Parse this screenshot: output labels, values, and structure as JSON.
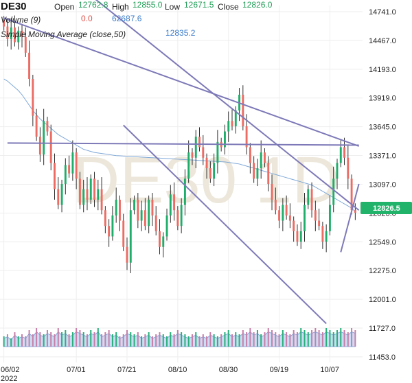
{
  "header": {
    "symbol": "DE30",
    "open_label": "Open",
    "open_value": "12762.8",
    "high_label": "High",
    "high_value": "12855.0",
    "low_label": "Low",
    "low_value": "12671.5",
    "close_label": "Close",
    "close_value": "12826.0",
    "volume_label": "Volume (9)",
    "volume_change": "0.0",
    "volume_value": "62687.6",
    "sma_label": "Simple Moving Average (close,50)",
    "sma_value": "12835.2"
  },
  "watermark": "DE30 1D",
  "last_price_tag": "12826.5",
  "colors": {
    "up": "#1fae6a",
    "down": "#ec6b63",
    "wick": "#2e2e2e",
    "sma": "#7fa8d8",
    "trendline": "#7d79b8",
    "volume_up": "#29b07a",
    "volume_down": "#c77fa8",
    "volume_area": "#a8c6ec",
    "price_tag": "#22b36b",
    "grid": "#eeeeee"
  },
  "chart_data": {
    "type": "candlestick",
    "y_ticks": [
      "14741.0",
      "14467.0",
      "14193.0",
      "13919.0",
      "13645.0",
      "13371.0",
      "13097.0",
      "12823.0",
      "12549.0",
      "12275.0",
      "12001.0",
      "11727.0",
      "11453.0"
    ],
    "ylim": [
      11400,
      14800
    ],
    "x_ticks": [
      {
        "label": "06/02",
        "bar": 0
      },
      {
        "label": "07/01",
        "bar": 20
      },
      {
        "label": "07/21",
        "bar": 34
      },
      {
        "label": "08/10",
        "bar": 48
      },
      {
        "label": "08/30",
        "bar": 62
      },
      {
        "label": "09/19",
        "bar": 76
      },
      {
        "label": "10/07",
        "bar": 90
      }
    ],
    "x_sub_label": "2022",
    "bar_count": 98,
    "closes": [
      14600,
      14480,
      14590,
      14450,
      14560,
      14500,
      14350,
      14100,
      13750,
      13550,
      13380,
      13700,
      13600,
      13300,
      13050,
      12900,
      13100,
      13280,
      13200,
      13400,
      13150,
      12900,
      13050,
      12950,
      13150,
      12950,
      13050,
      12850,
      12700,
      12600,
      12800,
      12950,
      12750,
      12500,
      12350,
      12850,
      12950,
      12750,
      12850,
      12700,
      12950,
      12800,
      12650,
      12500,
      12600,
      12800,
      13000,
      12850,
      12700,
      12900,
      13150,
      13400,
      13350,
      13550,
      13450,
      13350,
      13250,
      13150,
      13300,
      13500,
      13450,
      13600,
      13700,
      13650,
      13800,
      13950,
      13650,
      13450,
      13300,
      13150,
      13250,
      13400,
      13300,
      13100,
      12950,
      12850,
      12750,
      12900,
      12800,
      12750,
      12650,
      12550,
      12650,
      12900,
      13050,
      12850,
      12750,
      12700,
      12550,
      12650,
      12900,
      13150,
      13300,
      13450,
      13350,
      13150,
      12850,
      12826
    ],
    "sma": [
      14100,
      14080,
      14050,
      14020,
      13990,
      13950,
      13900,
      13850,
      13800,
      13760,
      13720,
      13690,
      13660,
      13630,
      13600,
      13570,
      13550,
      13530,
      13510,
      13490,
      13470,
      13450,
      13430,
      13420,
      13410,
      13400,
      13395,
      13390,
      13385,
      13380,
      13375,
      13370,
      13368,
      13366,
      13364,
      13362,
      13360,
      13358,
      13356,
      13354,
      13352,
      13350,
      13348,
      13346,
      13344,
      13342,
      13340,
      13338,
      13336,
      13334,
      13332,
      13330,
      13328,
      13326,
      13324,
      13322,
      13320,
      13318,
      13316,
      13314,
      13312,
      13310,
      13305,
      13300,
      13295,
      13290,
      13280,
      13270,
      13260,
      13250,
      13240,
      13230,
      13220,
      13210,
      13200,
      13190,
      13180,
      13170,
      13160,
      13150,
      13140,
      13130,
      13120,
      13110,
      13100,
      13090,
      13070,
      13050,
      13030,
      13010,
      12990,
      12970,
      12950,
      12930,
      12910,
      12890,
      12870,
      12835
    ],
    "volumes": [
      0.5,
      0.6,
      0.4,
      0.7,
      0.5,
      0.6,
      0.5,
      0.8,
      0.6,
      0.9,
      0.7,
      0.6,
      0.8,
      0.7,
      0.6,
      0.9,
      0.7,
      0.8,
      0.6,
      0.7,
      0.9,
      0.8,
      0.7,
      0.6,
      0.8,
      0.7,
      0.9,
      0.6,
      0.7,
      0.8,
      0.6,
      0.7,
      0.5,
      0.6,
      0.8,
      0.7,
      0.6,
      0.7,
      0.5,
      0.6,
      0.7,
      0.5,
      0.6,
      0.7,
      0.6,
      0.5,
      0.7,
      0.6,
      0.8,
      0.7,
      0.6,
      0.5,
      0.6,
      0.7,
      0.5,
      0.6,
      0.5,
      0.7,
      0.6,
      0.5,
      0.6,
      0.7,
      0.8,
      0.6,
      0.7,
      0.6,
      0.8,
      0.7,
      0.9,
      0.7,
      0.8,
      0.6,
      0.7,
      0.9,
      0.8,
      0.7,
      0.6,
      0.8,
      0.7,
      0.6,
      0.8,
      0.7,
      0.9,
      0.8,
      0.7,
      0.8,
      0.9,
      0.8,
      0.7,
      0.9,
      0.8,
      0.7,
      0.8,
      0.9,
      0.8,
      0.7,
      0.9,
      0.8
    ],
    "trendlines": [
      {
        "from": {
          "bar": 0,
          "price": 14680
        },
        "to": {
          "bar": 98,
          "price": 13460
        }
      },
      {
        "from": {
          "bar": 1,
          "price": 13490
        },
        "to": {
          "bar": 98,
          "price": 13470
        }
      },
      {
        "from": {
          "bar": 22,
          "price": 14950
        },
        "to": {
          "bar": 98,
          "price": 12850
        }
      },
      {
        "from": {
          "bar": 33,
          "price": 13660
        },
        "to": {
          "bar": 89,
          "price": 11770
        }
      },
      {
        "from": {
          "bar": 93,
          "price": 12450
        },
        "to": {
          "bar": 98,
          "price": 13100
        }
      }
    ]
  }
}
